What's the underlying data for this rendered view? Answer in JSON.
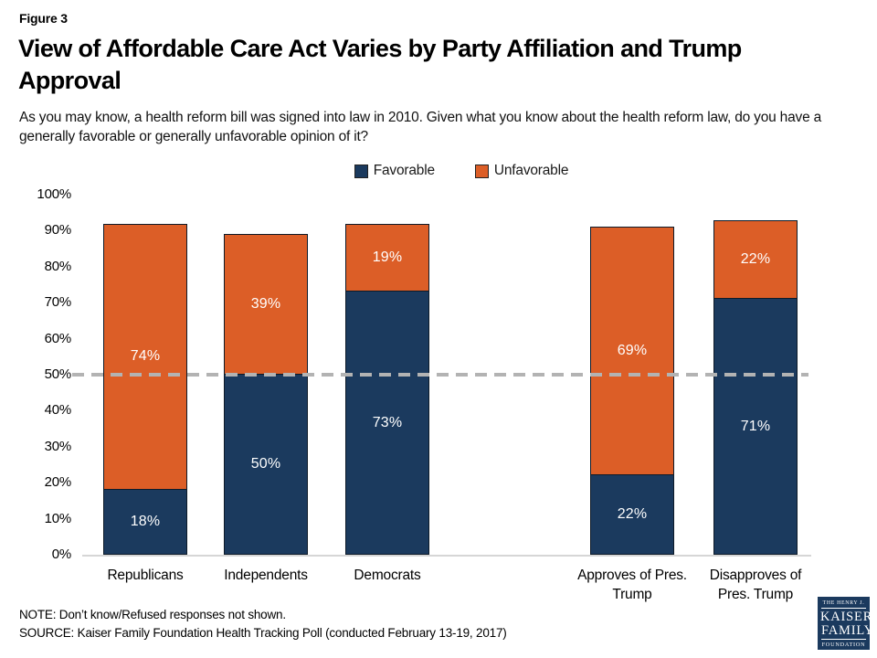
{
  "header": {
    "figure_label": "Figure 3",
    "title": "View of Affordable Care Act Varies by Party Affiliation and Trump Approval",
    "subtitle": "As you may know, a health reform bill was signed into law in 2010. Given what you know about the health reform law, do you have a generally favorable or generally unfavorable opinion of it?"
  },
  "chart_data": {
    "type": "bar",
    "stacked": true,
    "categories": [
      "Republicans",
      "Independents",
      "Democrats",
      "Approves of Pres. Trump",
      "Disapproves of Pres. Trump"
    ],
    "series": [
      {
        "name": "Favorable",
        "color": "#1b3a5e",
        "values": [
          18,
          50,
          73,
          22,
          71
        ]
      },
      {
        "name": "Unfavorable",
        "color": "#dc5e27",
        "values": [
          74,
          39,
          19,
          69,
          22
        ]
      }
    ],
    "value_label_suffix": "%",
    "y_ticks": [
      "100%",
      "90%",
      "80%",
      "70%",
      "60%",
      "50%",
      "40%",
      "30%",
      "20%",
      "10%",
      "0%"
    ],
    "ylim": [
      0,
      100
    ],
    "reference_line_value": 50,
    "legend_position": "top-center",
    "grid": false,
    "group_gap_after_category": "Democrats"
  },
  "footer": {
    "note": "NOTE: Don’t know/Refused responses not shown.",
    "source": "SOURCE: Kaiser Family Foundation Health Tracking Poll (conducted February 13-19, 2017)"
  },
  "logo": {
    "line1": "THE HENRY J.",
    "line2": "KAISER",
    "line3": "FAMILY",
    "line4": "FOUNDATION"
  },
  "colors": {
    "favorable": "#1b3a5e",
    "unfavorable": "#dc5e27",
    "reference_line": "#b3b3b3",
    "axis_line": "#d6d6d6",
    "bar_label_text": "#ffffff",
    "logo_background": "#1b3a5e"
  }
}
